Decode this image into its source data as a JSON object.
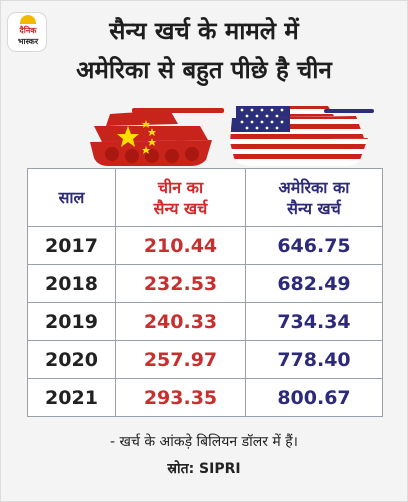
{
  "logo": {
    "line1": "दैनिक",
    "line2": "भास्कर"
  },
  "title": {
    "line1": "सैन्य खर्च के मामले में",
    "line2": "अमेरिका से बहुत पीछे है चीन"
  },
  "colors": {
    "china": "#d22a2a",
    "usa": "#2d2a7a",
    "grid": "#9aa0a8"
  },
  "icons": {
    "china_tank": "tank-china-flag-icon",
    "usa_tank": "tank-usa-flag-icon"
  },
  "chart_data": {
    "type": "table",
    "columns": [
      "साल",
      "चीन का\nसैन्य खर्च",
      "अमेरिका का\nसैन्य खर्च"
    ],
    "rows": [
      {
        "year": "2017",
        "china": "210.44",
        "usa": "646.75"
      },
      {
        "year": "2018",
        "china": "232.53",
        "usa": "682.49"
      },
      {
        "year": "2019",
        "china": "240.33",
        "usa": "734.34"
      },
      {
        "year": "2020",
        "china": "257.97",
        "usa": "778.40"
      },
      {
        "year": "2021",
        "china": "293.35",
        "usa": "800.67"
      }
    ]
  },
  "footer": {
    "note": "- खर्च के आंकड़े बिलियन डॉलर में हैं।",
    "source": "स्रोत: SIPRI"
  }
}
